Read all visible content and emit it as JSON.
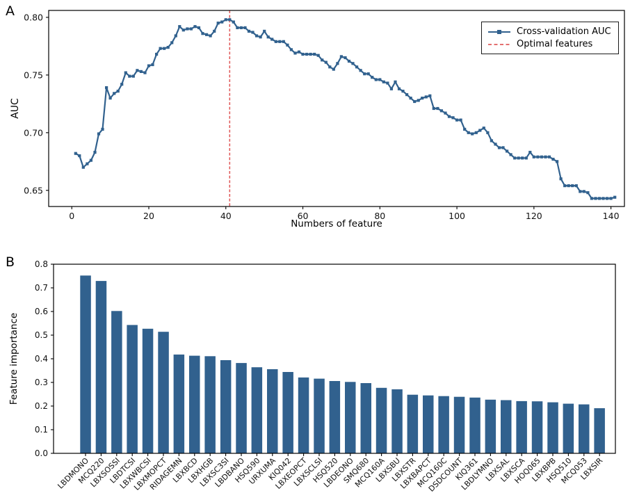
{
  "panels": {
    "a": "A",
    "b": "B"
  },
  "colors": {
    "series_blue": "#31618e",
    "optimal_red": "#e05c5c",
    "axis_black": "#000000",
    "background": "#ffffff"
  },
  "chart_data": [
    {
      "type": "line",
      "panel": "A",
      "title": "",
      "xlabel": "Numbers of feature",
      "ylabel": "AUC",
      "x_start": 1,
      "x_step": 1,
      "values": [
        0.682,
        0.68,
        0.67,
        0.673,
        0.676,
        0.683,
        0.699,
        0.703,
        0.739,
        0.73,
        0.734,
        0.736,
        0.742,
        0.752,
        0.749,
        0.749,
        0.754,
        0.753,
        0.752,
        0.758,
        0.759,
        0.768,
        0.773,
        0.773,
        0.774,
        0.778,
        0.784,
        0.792,
        0.789,
        0.79,
        0.79,
        0.792,
        0.791,
        0.786,
        0.785,
        0.784,
        0.788,
        0.795,
        0.796,
        0.798,
        0.798,
        0.796,
        0.791,
        0.791,
        0.791,
        0.788,
        0.787,
        0.784,
        0.783,
        0.788,
        0.783,
        0.781,
        0.779,
        0.779,
        0.779,
        0.776,
        0.772,
        0.769,
        0.77,
        0.768,
        0.768,
        0.768,
        0.768,
        0.767,
        0.763,
        0.761,
        0.757,
        0.755,
        0.76,
        0.766,
        0.765,
        0.762,
        0.76,
        0.757,
        0.754,
        0.751,
        0.751,
        0.748,
        0.746,
        0.746,
        0.744,
        0.743,
        0.738,
        0.744,
        0.738,
        0.736,
        0.733,
        0.73,
        0.727,
        0.728,
        0.73,
        0.731,
        0.732,
        0.721,
        0.721,
        0.719,
        0.717,
        0.714,
        0.713,
        0.711,
        0.711,
        0.703,
        0.7,
        0.699,
        0.7,
        0.702,
        0.704,
        0.7,
        0.693,
        0.69,
        0.687,
        0.687,
        0.684,
        0.681,
        0.678,
        0.678,
        0.678,
        0.678,
        0.683,
        0.679,
        0.679,
        0.679,
        0.679,
        0.679,
        0.677,
        0.675,
        0.66,
        0.654,
        0.654,
        0.654,
        0.654,
        0.649,
        0.649,
        0.648,
        0.643,
        0.643,
        0.643,
        0.643,
        0.643,
        0.643,
        0.644
      ],
      "optimal_x": 41,
      "xlim": [
        -6,
        143.5
      ],
      "ylim": [
        0.636,
        0.806
      ],
      "xticks": [
        0,
        20,
        40,
        60,
        80,
        100,
        120,
        140
      ],
      "xtick_labels": [
        "0",
        "20",
        "40",
        "60",
        "80",
        "100",
        "120",
        "140"
      ],
      "yticks": [
        0.65,
        0.7,
        0.75,
        0.8
      ],
      "ytick_labels": [
        "0.65",
        "0.70",
        "0.75",
        "0.80"
      ],
      "legend": [
        "Cross-validation AUC",
        "Optimal features"
      ],
      "legend_position": "upper right",
      "grid": false,
      "line_color": "#31618e",
      "optimal_color": "#e05c5c",
      "marker": "square"
    },
    {
      "type": "bar",
      "panel": "B",
      "title": "",
      "xlabel": "",
      "ylabel": "Feature importance",
      "categories": [
        "LBDMONO",
        "MCQ220",
        "LBXSOSSI",
        "LBDTCSI",
        "LBXWBCSI",
        "LBXMOPCT",
        "RIDAGEMN",
        "LBXBCD",
        "LBXHGB",
        "LBXSC3SI",
        "LBDBANO",
        "HSQ590",
        "URXUMA",
        "KIQ042",
        "LBXEOPCT",
        "LBXSCLSI",
        "HSQ520",
        "LBDEONO",
        "SMQ680",
        "MCQ160A",
        "LBXSBU",
        "LBXSTR",
        "LBXBAPCT",
        "MCQ160C",
        "DSDCOUNT",
        "KIQ361",
        "LBDLYMNO",
        "LBXSAL",
        "LBXSCA",
        "HOQ065",
        "LBXBPB",
        "HSQ510",
        "MCQ053",
        "LBXSIR"
      ],
      "values": [
        0.752,
        0.729,
        0.602,
        0.543,
        0.527,
        0.514,
        0.418,
        0.413,
        0.411,
        0.394,
        0.382,
        0.364,
        0.356,
        0.344,
        0.321,
        0.316,
        0.306,
        0.302,
        0.297,
        0.277,
        0.271,
        0.248,
        0.245,
        0.242,
        0.239,
        0.236,
        0.227,
        0.225,
        0.221,
        0.22,
        0.216,
        0.21,
        0.207,
        0.191
      ],
      "ylim": [
        0,
        0.8
      ],
      "yticks": [
        0,
        0.1,
        0.2,
        0.3,
        0.4,
        0.5,
        0.6,
        0.7,
        0.8
      ],
      "ytick_labels": [
        "0.0",
        "0.1",
        "0.2",
        "0.3",
        "0.4",
        "0.5",
        "0.6",
        "0.7",
        "0.8"
      ],
      "grid": false,
      "bar_color": "#31618e"
    }
  ]
}
